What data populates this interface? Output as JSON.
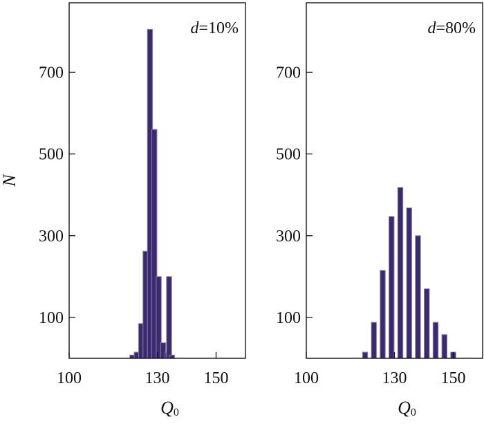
{
  "chart_data": [
    {
      "type": "bar",
      "histogram": true,
      "annotation": {
        "var": "d",
        "rest": "=10%"
      },
      "xlabel": {
        "base": "Q",
        "sub": "0"
      },
      "ylabel": "N",
      "xlim": [
        100,
        160
      ],
      "ylim": [
        0,
        870
      ],
      "xticks": [
        100,
        130,
        150
      ],
      "yticks": [
        100,
        300,
        500,
        700
      ],
      "bin_width": 3,
      "bins": [
        {
          "x": 121.5,
          "count": 8
        },
        {
          "x": 123,
          "count": 15
        },
        {
          "x": 134,
          "count": 200
        },
        {
          "x": 124.5,
          "count": 85
        },
        {
          "x": 126,
          "count": 262
        },
        {
          "x": 127.5,
          "count": 805
        },
        {
          "x": 129,
          "count": 560
        },
        {
          "x": 130.5,
          "count": 200
        },
        {
          "x": 132,
          "count": 38
        },
        {
          "x": 133.5,
          "count": 15
        },
        {
          "x": 135,
          "count": 8
        }
      ],
      "bar_color": "#3b2a6e",
      "grid": false
    },
    {
      "type": "bar",
      "histogram": true,
      "annotation": {
        "var": "d",
        "rest": "=80%"
      },
      "xlabel": {
        "base": "Q",
        "sub": "0"
      },
      "ylabel": "",
      "xlim": [
        100,
        160
      ],
      "ylim": [
        0,
        870
      ],
      "xticks": [
        100,
        130,
        150
      ],
      "yticks": [
        100,
        300,
        500,
        700
      ],
      "bin_width": 3,
      "bins": [
        {
          "x": 120,
          "count": 15
        },
        {
          "x": 123,
          "count": 88
        },
        {
          "x": 126,
          "count": 215
        },
        {
          "x": 129,
          "count": 347
        },
        {
          "x": 132,
          "count": 418
        },
        {
          "x": 135,
          "count": 368
        },
        {
          "x": 138,
          "count": 300
        },
        {
          "x": 141,
          "count": 170
        },
        {
          "x": 144,
          "count": 88
        },
        {
          "x": 147,
          "count": 58
        },
        {
          "x": 150,
          "count": 15
        }
      ],
      "bar_color": "#3b2a6e",
      "grid": false
    }
  ]
}
